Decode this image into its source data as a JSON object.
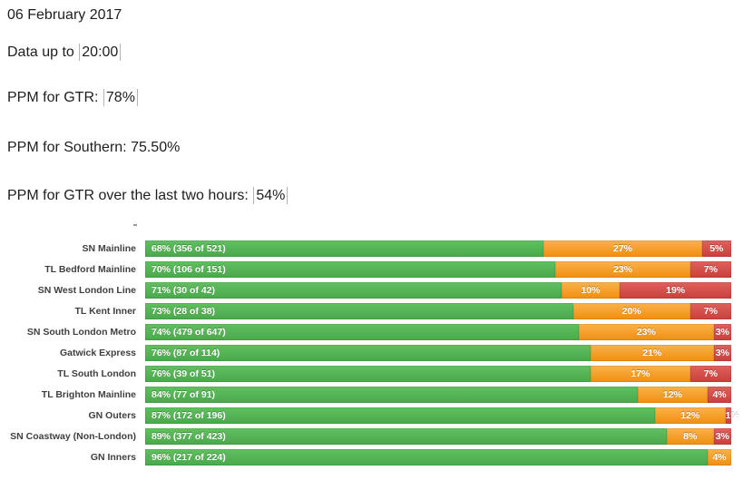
{
  "header": {
    "date": "06 February 2017",
    "data_up_to": {
      "prefix": "Data up to ",
      "value": "20:00"
    },
    "ppm_gtr": {
      "prefix": "PPM for GTR: ",
      "value": "78%"
    },
    "ppm_southern": "PPM for Southern: 75.50%",
    "ppm_gtr_two_hours": {
      "prefix": "PPM for GTR over the last two hours: ",
      "value": "54%"
    }
  },
  "chart_data": {
    "type": "bar",
    "orientation": "horizontal",
    "stacked": true,
    "unit": "%",
    "xlim": [
      0,
      100
    ],
    "grid": false,
    "legend": "none",
    "colors": {
      "green": "#5cb85c",
      "orange": "#f5a235",
      "red": "#d6504c"
    },
    "categories": [
      "SN Mainline",
      "TL Bedford Mainline",
      "SN West London Line",
      "TL Kent Inner",
      "SN South London Metro",
      "Gatwick Express",
      "TL South London",
      "TL Brighton Mainline",
      "GN Outers",
      "SN Coastway (Non-London)",
      "GN Inners"
    ],
    "series": [
      {
        "name": "green",
        "values": [
          68,
          70,
          71,
          73,
          74,
          76,
          76,
          84,
          87,
          89,
          96
        ]
      },
      {
        "name": "orange",
        "values": [
          27,
          23,
          10,
          20,
          23,
          21,
          17,
          12,
          12,
          8,
          4
        ]
      },
      {
        "name": "red",
        "values": [
          5,
          7,
          19,
          7,
          3,
          3,
          7,
          4,
          1,
          3,
          0
        ]
      }
    ],
    "rows": [
      {
        "label": "SN Mainline",
        "green": 68,
        "green_text": "68% (356 of 521)",
        "orange": 27,
        "orange_text": "27%",
        "red": 5,
        "red_text": "5%"
      },
      {
        "label": "TL Bedford Mainline",
        "green": 70,
        "green_text": "70% (106 of 151)",
        "orange": 23,
        "orange_text": "23%",
        "red": 7,
        "red_text": "7%"
      },
      {
        "label": "SN West London Line",
        "green": 71,
        "green_text": "71% (30 of 42)",
        "orange": 10,
        "orange_text": "10%",
        "red": 19,
        "red_text": "19%"
      },
      {
        "label": "TL Kent Inner",
        "green": 73,
        "green_text": "73% (28 of 38)",
        "orange": 20,
        "orange_text": "20%",
        "red": 7,
        "red_text": "7%"
      },
      {
        "label": "SN South London Metro",
        "green": 74,
        "green_text": "74% (479 of 647)",
        "orange": 23,
        "orange_text": "23%",
        "red": 3,
        "red_text": "3%"
      },
      {
        "label": "Gatwick Express",
        "green": 76,
        "green_text": "76% (87 of 114)",
        "orange": 21,
        "orange_text": "21%",
        "red": 3,
        "red_text": "3%"
      },
      {
        "label": "TL South London",
        "green": 76,
        "green_text": "76% (39 of 51)",
        "orange": 17,
        "orange_text": "17%",
        "red": 7,
        "red_text": "7%"
      },
      {
        "label": "TL Brighton Mainline",
        "green": 84,
        "green_text": "84% (77 of 91)",
        "orange": 12,
        "orange_text": "12%",
        "red": 4,
        "red_text": "4%"
      },
      {
        "label": "GN Outers",
        "green": 87,
        "green_text": "87% (172 of 196)",
        "orange": 12,
        "orange_text": "12%",
        "red": 1,
        "red_text": "1%"
      },
      {
        "label": "SN Coastway (Non-London)",
        "green": 89,
        "green_text": "89% (377 of 423)",
        "orange": 8,
        "orange_text": "8%",
        "red": 3,
        "red_text": "3%"
      },
      {
        "label": "GN Inners",
        "green": 96,
        "green_text": "96% (217 of 224)",
        "orange": 4,
        "orange_text": "4%",
        "red": 0,
        "red_text": ""
      }
    ]
  }
}
